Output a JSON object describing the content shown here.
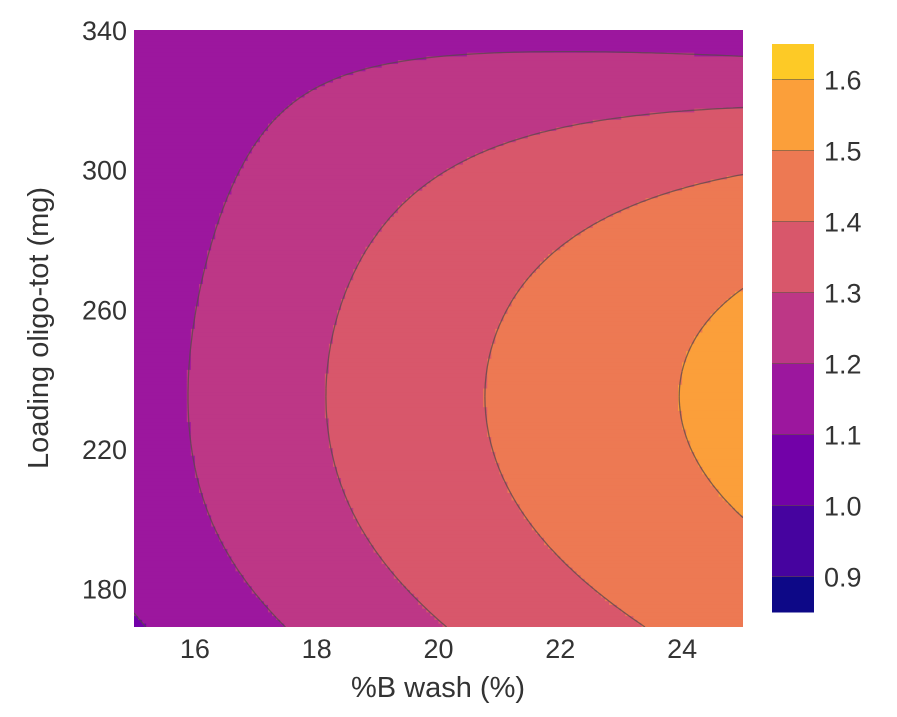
{
  "chart_data": {
    "type": "contour",
    "xlabel": "%B wash (%)",
    "ylabel": "Loading oligo-tot (mg)",
    "xlim": [
      15,
      25
    ],
    "ylim": [
      169,
      340
    ],
    "x_ticks": [
      "16",
      "18",
      "20",
      "22",
      "24"
    ],
    "y_ticks": [
      "180",
      "220",
      "260",
      "300",
      "340"
    ],
    "colorbar": {
      "range": [
        0.85,
        1.65
      ],
      "levels": [
        0.9,
        1.0,
        1.1,
        1.2,
        1.3,
        1.4,
        1.5,
        1.6
      ],
      "tick_labels": [
        "0.9",
        "1.0",
        "1.1",
        "1.2",
        "1.3",
        "1.4",
        "1.5",
        "1.6"
      ],
      "colorscale": [
        "#0d0887",
        "#46039f",
        "#7201a8",
        "#9c179e",
        "#bd3786",
        "#d8576b",
        "#ed7953",
        "#fb9f3a",
        "#fdca26",
        "#f0f921"
      ]
    },
    "colorscale_name": "plasma",
    "contour_interval": 0.1
  }
}
